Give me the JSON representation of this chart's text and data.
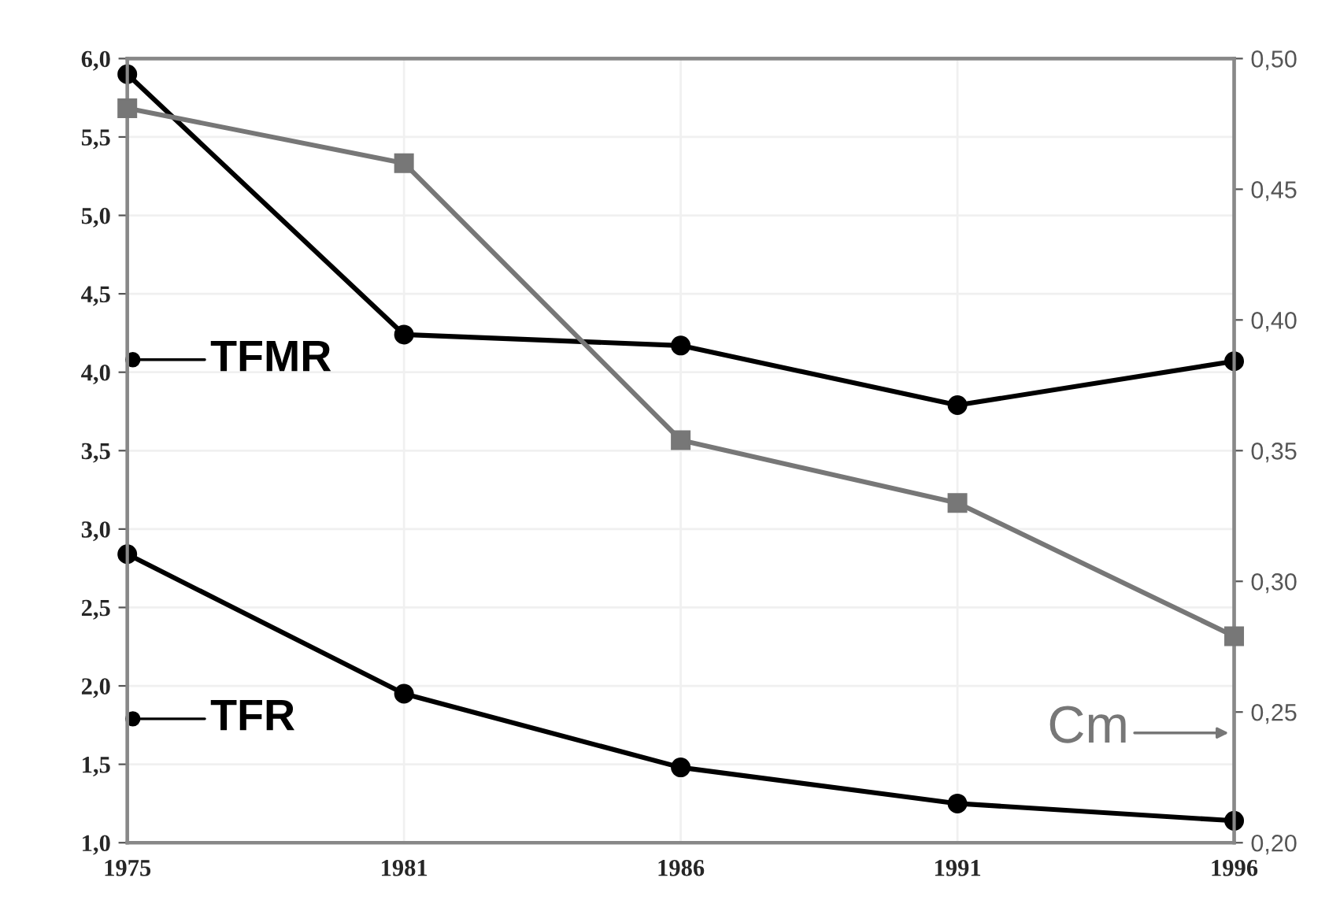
{
  "chart_data": {
    "type": "line",
    "categories": [
      "1975",
      "1981",
      "1986",
      "1991",
      "1996"
    ],
    "series": [
      {
        "name": "TFMR",
        "color": "#000000",
        "marker": "circle",
        "values": [
          5.9,
          4.24,
          4.17,
          3.79,
          4.07
        ]
      },
      {
        "name": "TFR",
        "color": "#000000",
        "marker": "circle",
        "values": [
          2.84,
          1.95,
          1.48,
          1.25,
          1.14
        ]
      },
      {
        "name": "Cm",
        "color": "#777777",
        "marker": "square",
        "axis": "y2",
        "values": [
          0.481,
          0.46,
          0.354,
          0.33,
          0.279
        ]
      }
    ],
    "ylim": [
      1.0,
      6.0
    ],
    "yticks": [
      {
        "value": 1.0,
        "label": "1,0"
      },
      {
        "value": 1.5,
        "label": "1,5"
      },
      {
        "value": 2.0,
        "label": "2,0"
      },
      {
        "value": 2.5,
        "label": "2,5"
      },
      {
        "value": 3.0,
        "label": "3,0"
      },
      {
        "value": 3.5,
        "label": "3,5"
      },
      {
        "value": 4.0,
        "label": "4,0"
      },
      {
        "value": 4.5,
        "label": "4,5"
      },
      {
        "value": 5.0,
        "label": "5,0"
      },
      {
        "value": 5.5,
        "label": "5,5"
      },
      {
        "value": 6.0,
        "label": "6,0"
      }
    ],
    "y2lim": [
      0.2,
      0.5
    ],
    "y2ticks": [
      {
        "value": 0.2,
        "label": "0,20"
      },
      {
        "value": 0.25,
        "label": "0,25"
      },
      {
        "value": 0.3,
        "label": "0,30"
      },
      {
        "value": 0.35,
        "label": "0,35"
      },
      {
        "value": 0.4,
        "label": "0,40"
      },
      {
        "value": 0.45,
        "label": "0,45"
      },
      {
        "value": 0.5,
        "label": "0,50"
      }
    ],
    "grid": true,
    "legend": "left",
    "line_style": "solid"
  }
}
